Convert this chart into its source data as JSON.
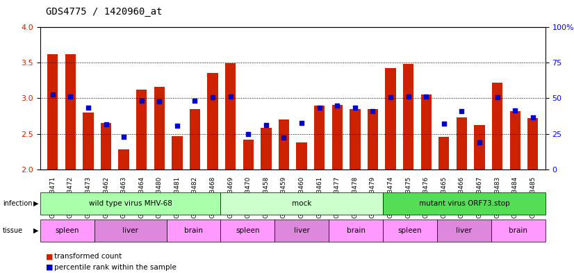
{
  "title": "GDS4775 / 1420960_at",
  "samples": [
    "GSM1243471",
    "GSM1243472",
    "GSM1243473",
    "GSM1243462",
    "GSM1243463",
    "GSM1243464",
    "GSM1243480",
    "GSM1243481",
    "GSM1243482",
    "GSM1243468",
    "GSM1243469",
    "GSM1243470",
    "GSM1243458",
    "GSM1243459",
    "GSM1243460",
    "GSM1243461",
    "GSM1243477",
    "GSM1243478",
    "GSM1243479",
    "GSM1243474",
    "GSM1243475",
    "GSM1243476",
    "GSM1243465",
    "GSM1243466",
    "GSM1243467",
    "GSM1243483",
    "GSM1243484",
    "GSM1243485"
  ],
  "bar_values": [
    3.62,
    3.62,
    2.8,
    2.65,
    2.28,
    3.12,
    3.16,
    2.47,
    2.85,
    3.36,
    3.49,
    2.42,
    2.58,
    2.7,
    2.38,
    2.9,
    2.91,
    2.85,
    2.85,
    3.43,
    3.48,
    3.05,
    2.46,
    2.73,
    2.62,
    3.22,
    2.82,
    2.72
  ],
  "dot_values": [
    3.05,
    3.02,
    2.87,
    2.63,
    2.46,
    2.97,
    2.96,
    2.61,
    2.97,
    3.01,
    3.02,
    2.5,
    2.62,
    2.45,
    2.65,
    2.87,
    2.9,
    2.87,
    2.82,
    3.01,
    3.02,
    3.02,
    2.64,
    2.82,
    2.38,
    3.01,
    2.83,
    2.73
  ],
  "bar_color": "#cc2200",
  "dot_color": "#0000cc",
  "ylim_left": [
    2.0,
    4.0
  ],
  "ylim_right": [
    0,
    100
  ],
  "yticks_left": [
    2.0,
    2.5,
    3.0,
    3.5,
    4.0
  ],
  "yticks_right": [
    0,
    25,
    50,
    75,
    100
  ],
  "ytick_labels_right": [
    "0",
    "25",
    "50",
    "75",
    "100%"
  ],
  "infection_groups": [
    {
      "label": "wild type virus MHV-68",
      "start": 0,
      "end": 10,
      "color": "#aaffaa"
    },
    {
      "label": "mock",
      "start": 10,
      "end": 19,
      "color": "#ccffcc"
    },
    {
      "label": "mutant virus ORF73.stop",
      "start": 19,
      "end": 28,
      "color": "#55dd55"
    }
  ],
  "tissue_groups": [
    {
      "label": "spleen",
      "start": 0,
      "end": 3,
      "color": "#ff99ff"
    },
    {
      "label": "liver",
      "start": 3,
      "end": 7,
      "color": "#dd88dd"
    },
    {
      "label": "brain",
      "start": 7,
      "end": 10,
      "color": "#ff99ff"
    },
    {
      "label": "spleen",
      "start": 10,
      "end": 13,
      "color": "#ff99ff"
    },
    {
      "label": "liver",
      "start": 13,
      "end": 16,
      "color": "#dd88dd"
    },
    {
      "label": "brain",
      "start": 16,
      "end": 19,
      "color": "#ff99ff"
    },
    {
      "label": "spleen",
      "start": 19,
      "end": 22,
      "color": "#ff99ff"
    },
    {
      "label": "liver",
      "start": 22,
      "end": 25,
      "color": "#dd88dd"
    },
    {
      "label": "brain",
      "start": 25,
      "end": 28,
      "color": "#ff99ff"
    }
  ],
  "legend_items": [
    {
      "label": "transformed count",
      "color": "#cc2200",
      "marker": "s"
    },
    {
      "label": "percentile rank within the sample",
      "color": "#0000cc",
      "marker": "s"
    }
  ]
}
